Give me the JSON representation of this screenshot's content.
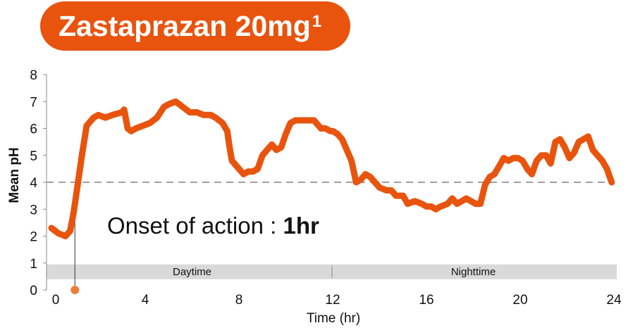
{
  "header": {
    "title": "Zastaprazan 20mg",
    "title_sup": "1"
  },
  "colors": {
    "accent": "#e8540e",
    "threshold": "#a0a0a0",
    "band": "#d9d9d9",
    "onset_dot": "#ee7d3a"
  },
  "chart_data": {
    "type": "line",
    "title": "Zastaprazan 20mg",
    "xlabel": "Time (hr)",
    "ylabel": "Mean pH",
    "xlim": [
      0,
      24
    ],
    "ylim": [
      0,
      8
    ],
    "xticks": [
      0,
      4,
      8,
      12,
      16,
      20,
      24
    ],
    "yticks": [
      0,
      1,
      2,
      3,
      4,
      5,
      6,
      7,
      8
    ],
    "grid": false,
    "threshold": {
      "y": 4,
      "style": "dashed"
    },
    "bands": [
      {
        "label": "Daytime",
        "x": [
          0,
          12
        ]
      },
      {
        "label": "Nighttime",
        "x": [
          12,
          24
        ]
      }
    ],
    "annotation": {
      "prefix": "Onset of action : ",
      "value": "1hr",
      "x": 1
    },
    "series": [
      {
        "x": [
          0,
          0.3,
          0.6,
          0.8,
          0.95,
          1.1,
          1.3,
          1.5,
          1.8,
          2.0,
          2.3,
          2.6,
          3.0,
          3.1,
          3.25,
          3.4,
          3.6,
          3.9,
          4.2,
          4.5,
          4.8,
          5.0,
          5.3,
          5.6,
          5.9,
          6.2,
          6.5,
          6.8,
          7.0,
          7.3,
          7.5,
          7.6,
          7.7,
          7.8,
          8.0,
          8.2,
          8.4,
          8.6,
          8.8,
          9.0,
          9.2,
          9.4,
          9.6,
          9.8,
          10.0,
          10.2,
          10.4,
          10.6,
          10.8,
          11.0,
          11.2,
          11.5,
          11.7,
          11.9,
          12.0,
          12.2,
          12.4,
          12.6,
          12.8,
          13.0,
          13.2,
          13.4,
          13.6,
          13.8,
          14.0,
          14.3,
          14.5,
          14.7,
          15.0,
          15.2,
          15.5,
          15.8,
          16.0,
          16.2,
          16.4,
          16.6,
          16.9,
          17.1,
          17.3,
          17.5,
          17.7,
          17.9,
          18.1,
          18.3,
          18.5,
          18.7,
          18.9,
          19.1,
          19.3,
          19.5,
          19.7,
          19.9,
          20.1,
          20.3,
          20.5,
          20.7,
          20.9,
          21.1,
          21.3,
          21.5,
          21.7,
          21.9,
          22.1,
          22.3,
          22.5,
          22.7,
          22.9,
          23.1,
          23.3,
          23.5,
          23.7,
          23.9
        ],
        "y": [
          2.3,
          2.1,
          2.0,
          2.2,
          2.9,
          3.8,
          5.0,
          6.1,
          6.4,
          6.5,
          6.4,
          6.5,
          6.6,
          6.7,
          6.0,
          5.9,
          6.0,
          6.1,
          6.2,
          6.4,
          6.8,
          6.9,
          7.0,
          6.8,
          6.6,
          6.6,
          6.5,
          6.5,
          6.4,
          6.2,
          5.9,
          5.3,
          4.8,
          4.7,
          4.5,
          4.3,
          4.4,
          4.4,
          4.5,
          5.0,
          5.2,
          5.4,
          5.2,
          5.3,
          5.8,
          6.2,
          6.3,
          6.3,
          6.3,
          6.3,
          6.3,
          6.0,
          6.0,
          5.9,
          5.9,
          5.8,
          5.6,
          5.2,
          4.8,
          4.0,
          4.1,
          4.3,
          4.2,
          4.0,
          3.8,
          3.7,
          3.7,
          3.5,
          3.5,
          3.2,
          3.3,
          3.2,
          3.1,
          3.1,
          3.0,
          3.1,
          3.2,
          3.4,
          3.2,
          3.3,
          3.4,
          3.3,
          3.2,
          3.2,
          3.9,
          4.2,
          4.3,
          4.6,
          4.9,
          4.8,
          4.9,
          4.9,
          4.8,
          4.5,
          4.3,
          4.8,
          5.0,
          5.0,
          4.7,
          5.5,
          5.6,
          5.3,
          4.9,
          5.1,
          5.5,
          5.6,
          5.7,
          5.2,
          5.0,
          4.8,
          4.5,
          4.0
        ]
      }
    ]
  }
}
